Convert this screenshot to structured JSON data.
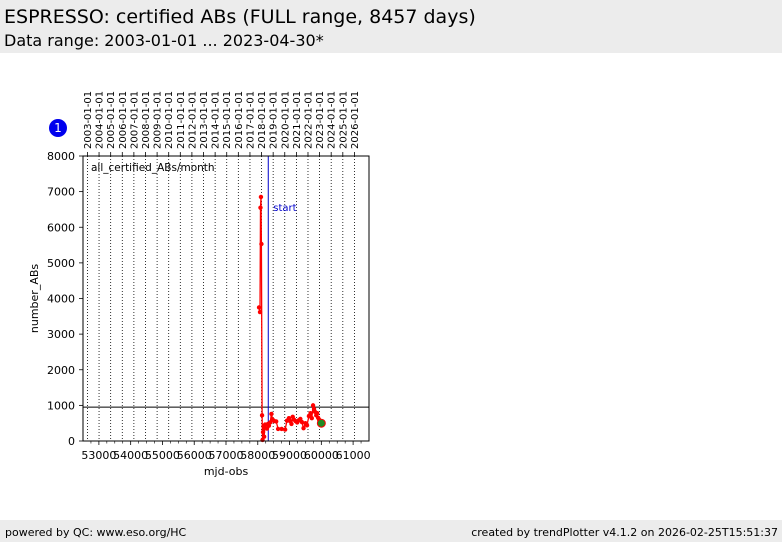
{
  "header": {
    "title": "ESPRESSO: certified ABs (FULL range, 8457 days)",
    "subtitle": "Data range: 2003-01-01 ... 2023-04-30*"
  },
  "footer": {
    "left": "powered by QC: www.eso.org/HC",
    "right": "created by trendPlotter v4.1.2 on 2026-02-25T15:51:37"
  },
  "badge": {
    "label": "1",
    "color": "#0000ee"
  },
  "chart_data": {
    "type": "scatter",
    "xlabel": "mjd-obs",
    "ylabel": "number_ABs",
    "xlim": [
      52500,
      61500
    ],
    "ylim": [
      0,
      8000
    ],
    "yticks": [
      0,
      1000,
      2000,
      3000,
      4000,
      5000,
      6000,
      7000,
      8000
    ],
    "xticks": [
      53000,
      54000,
      55000,
      56000,
      57000,
      58000,
      59000,
      60000,
      61000
    ],
    "year_ticks": [
      {
        "label": "2003-01-01",
        "mjd": 52640
      },
      {
        "label": "2004-01-01",
        "mjd": 53005
      },
      {
        "label": "2005-01-01",
        "mjd": 53371
      },
      {
        "label": "2006-01-01",
        "mjd": 53736
      },
      {
        "label": "2007-01-01",
        "mjd": 54101
      },
      {
        "label": "2008-01-01",
        "mjd": 54466
      },
      {
        "label": "2009-01-01",
        "mjd": 54832
      },
      {
        "label": "2010-01-01",
        "mjd": 55197
      },
      {
        "label": "2011-01-01",
        "mjd": 55562
      },
      {
        "label": "2012-01-01",
        "mjd": 55927
      },
      {
        "label": "2013-01-01",
        "mjd": 56293
      },
      {
        "label": "2014-01-01",
        "mjd": 56658
      },
      {
        "label": "2015-01-01",
        "mjd": 57023
      },
      {
        "label": "2016-01-01",
        "mjd": 57388
      },
      {
        "label": "2017-01-01",
        "mjd": 57754
      },
      {
        "label": "2018-01-01",
        "mjd": 58119
      },
      {
        "label": "2019-01-01",
        "mjd": 58484
      },
      {
        "label": "2020-01-01",
        "mjd": 58849
      },
      {
        "label": "2021-01-01",
        "mjd": 59215
      },
      {
        "label": "2022-01-01",
        "mjd": 59580
      },
      {
        "label": "2023-01-01",
        "mjd": 59945
      },
      {
        "label": "2024-01-01",
        "mjd": 60310
      },
      {
        "label": "2025-01-01",
        "mjd": 60676
      },
      {
        "label": "2026-01-01",
        "mjd": 61041
      }
    ],
    "series_label": "all_certified_ABs/month",
    "series_color": "#ff0000",
    "hline": 950,
    "start_line": {
      "label": "start",
      "mjd": 58330,
      "color": "#0000cc"
    },
    "last_point_color": "#228b22",
    "points": [
      {
        "x": 58040,
        "y": 3750
      },
      {
        "x": 58070,
        "y": 3620
      },
      {
        "x": 58085,
        "y": 6550
      },
      {
        "x": 58100,
        "y": 6850
      },
      {
        "x": 58115,
        "y": 5530
      },
      {
        "x": 58135,
        "y": 720
      },
      {
        "x": 58150,
        "y": 30
      },
      {
        "x": 58165,
        "y": 250
      },
      {
        "x": 58180,
        "y": 420
      },
      {
        "x": 58200,
        "y": 120
      },
      {
        "x": 58230,
        "y": 460
      },
      {
        "x": 58290,
        "y": 350
      },
      {
        "x": 58320,
        "y": 480
      },
      {
        "x": 58350,
        "y": 430
      },
      {
        "x": 58390,
        "y": 520
      },
      {
        "x": 58430,
        "y": 760
      },
      {
        "x": 58470,
        "y": 600
      },
      {
        "x": 58520,
        "y": 560
      },
      {
        "x": 58580,
        "y": 550
      },
      {
        "x": 58640,
        "y": 340
      },
      {
        "x": 58750,
        "y": 340
      },
      {
        "x": 58860,
        "y": 320
      },
      {
        "x": 58920,
        "y": 570
      },
      {
        "x": 58980,
        "y": 640
      },
      {
        "x": 59020,
        "y": 560
      },
      {
        "x": 59060,
        "y": 480
      },
      {
        "x": 59100,
        "y": 680
      },
      {
        "x": 59140,
        "y": 600
      },
      {
        "x": 59190,
        "y": 560
      },
      {
        "x": 59240,
        "y": 520
      },
      {
        "x": 59290,
        "y": 580
      },
      {
        "x": 59340,
        "y": 620
      },
      {
        "x": 59390,
        "y": 530
      },
      {
        "x": 59440,
        "y": 360
      },
      {
        "x": 59500,
        "y": 500
      },
      {
        "x": 59550,
        "y": 440
      },
      {
        "x": 59610,
        "y": 700
      },
      {
        "x": 59660,
        "y": 780
      },
      {
        "x": 59700,
        "y": 640
      },
      {
        "x": 59740,
        "y": 1000
      },
      {
        "x": 59770,
        "y": 900
      },
      {
        "x": 59800,
        "y": 820
      },
      {
        "x": 59840,
        "y": 720
      },
      {
        "x": 59870,
        "y": 780
      },
      {
        "x": 59900,
        "y": 650
      },
      {
        "x": 59930,
        "y": 600
      },
      {
        "x": 59970,
        "y": 540
      },
      {
        "x": 60000,
        "y": 500
      }
    ]
  }
}
